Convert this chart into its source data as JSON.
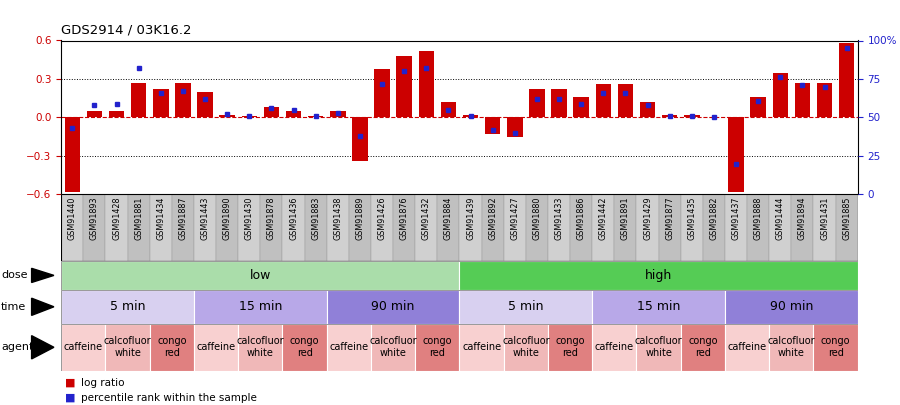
{
  "title": "GDS2914 / 03K16.2",
  "samples": [
    "GSM91440",
    "GSM91893",
    "GSM91428",
    "GSM91881",
    "GSM91434",
    "GSM91887",
    "GSM91443",
    "GSM91890",
    "GSM91430",
    "GSM91878",
    "GSM91436",
    "GSM91883",
    "GSM91438",
    "GSM91889",
    "GSM91426",
    "GSM91876",
    "GSM91432",
    "GSM91884",
    "GSM91439",
    "GSM91892",
    "GSM91427",
    "GSM91880",
    "GSM91433",
    "GSM91886",
    "GSM91442",
    "GSM91891",
    "GSM91429",
    "GSM91877",
    "GSM91435",
    "GSM91882",
    "GSM91437",
    "GSM91888",
    "GSM91444",
    "GSM91894",
    "GSM91431",
    "GSM91885"
  ],
  "log_ratio": [
    -0.58,
    0.05,
    0.05,
    0.27,
    0.22,
    0.27,
    0.2,
    0.02,
    0.01,
    0.08,
    0.05,
    0.01,
    0.05,
    -0.34,
    0.38,
    0.48,
    0.52,
    0.12,
    0.02,
    -0.13,
    -0.15,
    0.22,
    0.22,
    0.16,
    0.26,
    0.26,
    0.12,
    0.02,
    0.02,
    0.0,
    -0.58,
    0.16,
    0.35,
    0.27,
    0.27,
    0.58
  ],
  "percentile": [
    43,
    58,
    59,
    82,
    66,
    67,
    62,
    52,
    51,
    56,
    55,
    51,
    53,
    38,
    72,
    80,
    82,
    55,
    51,
    42,
    40,
    62,
    62,
    59,
    66,
    66,
    58,
    51,
    51,
    50,
    20,
    61,
    76,
    71,
    70,
    95
  ],
  "bar_color": "#cc0000",
  "dot_color": "#2222cc",
  "ylim_left": [
    -0.6,
    0.6
  ],
  "yticks_left": [
    -0.6,
    -0.3,
    0.0,
    0.3,
    0.6
  ],
  "ylim_right": [
    0,
    100
  ],
  "yticks_right": [
    0,
    25,
    50,
    75,
    100
  ],
  "ytick_right_labels": [
    "0",
    "25",
    "50",
    "75",
    "100%"
  ],
  "hlines": [
    0.3,
    -0.3
  ],
  "zero_line_color": "#cc0000",
  "dose_groups": [
    {
      "label": "low",
      "start": 0,
      "end": 18,
      "color": "#aaddaa"
    },
    {
      "label": "high",
      "start": 18,
      "end": 36,
      "color": "#55cc55"
    }
  ],
  "time_groups": [
    {
      "label": "5 min",
      "start": 0,
      "end": 6,
      "color": "#d8d0f0"
    },
    {
      "label": "15 min",
      "start": 6,
      "end": 12,
      "color": "#b8a8e8"
    },
    {
      "label": "90 min",
      "start": 12,
      "end": 18,
      "color": "#9080d8"
    },
    {
      "label": "5 min",
      "start": 18,
      "end": 24,
      "color": "#d8d0f0"
    },
    {
      "label": "15 min",
      "start": 24,
      "end": 30,
      "color": "#b8a8e8"
    },
    {
      "label": "90 min",
      "start": 30,
      "end": 36,
      "color": "#9080d8"
    }
  ],
  "agent_groups": [
    {
      "label": "caffeine",
      "start": 0,
      "end": 2,
      "color": "#f8d0d0"
    },
    {
      "label": "calcofluor\nwhite",
      "start": 2,
      "end": 4,
      "color": "#f0b8b8"
    },
    {
      "label": "congo\nred",
      "start": 4,
      "end": 6,
      "color": "#e08080"
    },
    {
      "label": "caffeine",
      "start": 6,
      "end": 8,
      "color": "#f8d0d0"
    },
    {
      "label": "calcofluor\nwhite",
      "start": 8,
      "end": 10,
      "color": "#f0b8b8"
    },
    {
      "label": "congo\nred",
      "start": 10,
      "end": 12,
      "color": "#e08080"
    },
    {
      "label": "caffeine",
      "start": 12,
      "end": 14,
      "color": "#f8d0d0"
    },
    {
      "label": "calcofluor\nwhite",
      "start": 14,
      "end": 16,
      "color": "#f0b8b8"
    },
    {
      "label": "congo\nred",
      "start": 16,
      "end": 18,
      "color": "#e08080"
    },
    {
      "label": "caffeine",
      "start": 18,
      "end": 20,
      "color": "#f8d0d0"
    },
    {
      "label": "calcofluor\nwhite",
      "start": 20,
      "end": 22,
      "color": "#f0b8b8"
    },
    {
      "label": "congo\nred",
      "start": 22,
      "end": 24,
      "color": "#e08080"
    },
    {
      "label": "caffeine",
      "start": 24,
      "end": 26,
      "color": "#f8d0d0"
    },
    {
      "label": "calcofluor\nwhite",
      "start": 26,
      "end": 28,
      "color": "#f0b8b8"
    },
    {
      "label": "congo\nred",
      "start": 28,
      "end": 30,
      "color": "#e08080"
    },
    {
      "label": "caffeine",
      "start": 30,
      "end": 32,
      "color": "#f8d0d0"
    },
    {
      "label": "calcofluor\nwhite",
      "start": 32,
      "end": 34,
      "color": "#f0b8b8"
    },
    {
      "label": "congo\nred",
      "start": 34,
      "end": 36,
      "color": "#e08080"
    }
  ],
  "row_labels": [
    "dose",
    "time",
    "agent"
  ],
  "legend_items": [
    {
      "label": "log ratio",
      "color": "#cc0000",
      "marker": "s"
    },
    {
      "label": "percentile rank within the sample",
      "color": "#2222cc",
      "marker": "s"
    }
  ],
  "fig_bg": "#ffffff",
  "label_area_color": "#cccccc"
}
